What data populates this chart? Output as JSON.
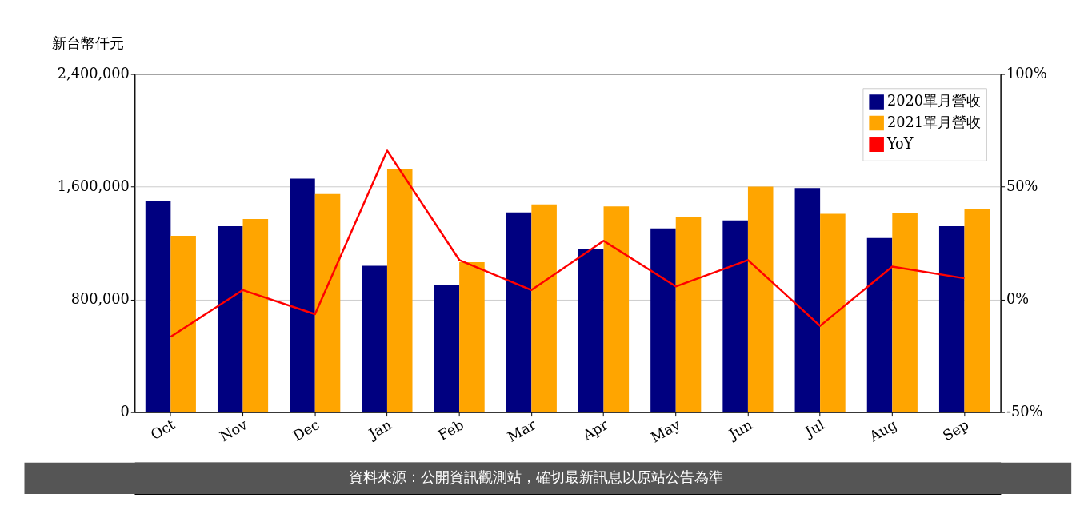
{
  "chart_data": {
    "type": "bar",
    "ylabel": "新台幣仟元",
    "categories": [
      "Oct",
      "Nov",
      "Dec",
      "Jan",
      "Feb",
      "Mar",
      "Apr",
      "May",
      "Jun",
      "Jul",
      "Aug",
      "Sep"
    ],
    "series": [
      {
        "name": "2020單月營收",
        "color": "#000080",
        "values": [
          1496000,
          1320000,
          1657000,
          1039000,
          904000,
          1418000,
          1158000,
          1304000,
          1361000,
          1590000,
          1236000,
          1320000
        ]
      },
      {
        "name": "2021單月營收",
        "color": "#ffa500",
        "values": [
          1252000,
          1371000,
          1548000,
          1725000,
          1065000,
          1475000,
          1460000,
          1382000,
          1600000,
          1408000,
          1413000,
          1444000
        ]
      },
      {
        "name": "YoY",
        "type": "line",
        "axis": "y2",
        "color": "#ff0000",
        "values": [
          -16.5,
          4.2,
          -6.5,
          66,
          17.5,
          4.2,
          26,
          5.8,
          17.5,
          -11.7,
          14.6,
          9.4
        ]
      }
    ],
    "ylim": [
      0,
      2400000
    ],
    "yticks": [
      0,
      {
        "value": 800000,
        "label": "800,000"
      },
      {
        "value": 1600000,
        "label": "1,600,000"
      },
      {
        "value": 2400000,
        "label": "2,400,000"
      }
    ],
    "y2lim": [
      -50,
      100
    ],
    "y2ticks": [
      {
        "value": -50,
        "label": "-50%"
      },
      {
        "value": 0,
        "label": "0%"
      },
      {
        "value": 50,
        "label": "50%"
      },
      {
        "value": 100,
        "label": "100%"
      }
    ],
    "grid": "y",
    "legend": "top right",
    "annotations": [
      "資料來源：公開資訊觀測站，確切最新訊息以原站公告為準"
    ]
  }
}
